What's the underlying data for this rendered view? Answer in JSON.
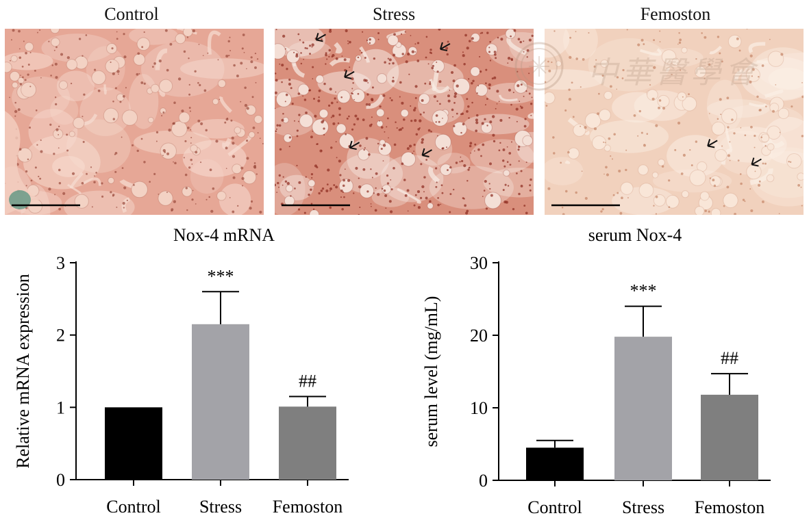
{
  "micrographs": {
    "panels": [
      {
        "title": "Control",
        "arrows": []
      },
      {
        "title": "Stress",
        "arrows": [
          [
            0.16,
            0.06
          ],
          [
            0.64,
            0.11
          ],
          [
            0.27,
            0.26
          ],
          [
            0.29,
            0.64
          ],
          [
            0.57,
            0.68
          ]
        ]
      },
      {
        "title": "Femoston",
        "arrows": [
          [
            0.63,
            0.63
          ],
          [
            0.8,
            0.73
          ]
        ]
      }
    ],
    "watermark": "中華醫學會"
  },
  "chart_data": [
    {
      "type": "bar",
      "title": "Nox-4 mRNA",
      "categories": [
        "Control",
        "Stress",
        "Femoston"
      ],
      "values": [
        1.0,
        2.15,
        1.01
      ],
      "errors": [
        0.0,
        0.45,
        0.14
      ],
      "annotations": [
        "",
        "***",
        "##"
      ],
      "colors": [
        "#000000",
        "#a3a3a8",
        "#7f7f7f"
      ],
      "ylabel": "Relative mRNA expression",
      "ylim": [
        0,
        3
      ],
      "yticks": [
        0,
        1,
        2,
        3
      ],
      "xlabel": ""
    },
    {
      "type": "bar",
      "title": "serum Nox-4",
      "categories": [
        "Control",
        "Stress",
        "Femoston"
      ],
      "values": [
        4.5,
        19.8,
        11.8
      ],
      "errors": [
        1.0,
        4.2,
        2.9
      ],
      "annotations": [
        "",
        "***",
        "##"
      ],
      "colors": [
        "#000000",
        "#a3a3a8",
        "#7f7f7f"
      ],
      "ylabel": "serum level (mg/mL)",
      "ylim": [
        0,
        30
      ],
      "yticks": [
        0,
        10,
        20,
        30
      ],
      "xlabel": ""
    }
  ]
}
